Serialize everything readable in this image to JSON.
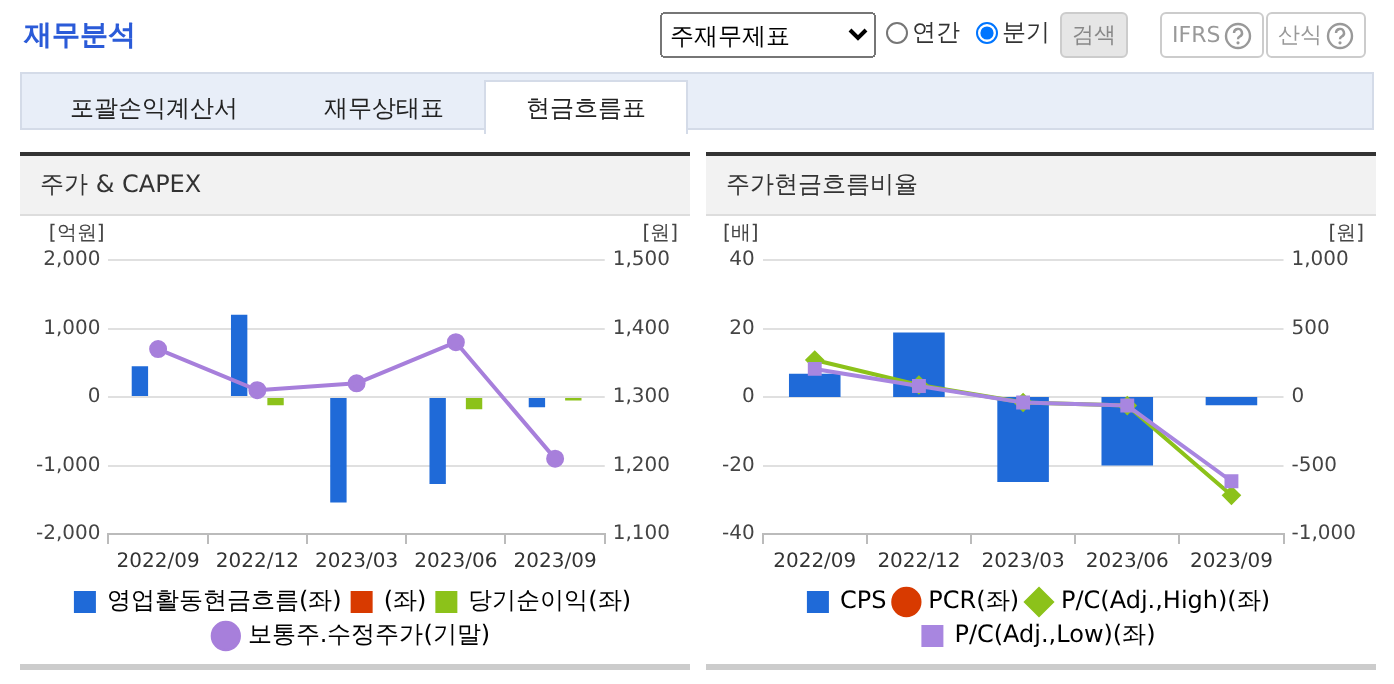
{
  "chart_data": [
    {
      "type": "other",
      "title": "재무분석",
      "annotations": [
        "주재무제표",
        "연간",
        "분기",
        "검색",
        "IFRS",
        "산식",
        "포괄손익계산서",
        "재무상태표",
        "현금흐름표"
      ]
    },
    {
      "type": "bar",
      "title": "주가 & CAPEX",
      "ylabel": "[억원]",
      "y2label": "[원]",
      "categories": [
        "2022/09",
        "2022/12",
        "2023/03",
        "2023/06",
        "2023/09"
      ],
      "series": [
        {
          "name": "영업활동현금흐름(좌)",
          "color": "#1f6ad8",
          "values": [
            450,
            1200,
            -1540,
            -1270,
            -150
          ]
        },
        {
          "name": "(좌)",
          "color": "#d83a00",
          "values": [
            null,
            null,
            null,
            null,
            null
          ]
        },
        {
          "name": "당기순이익(좌)",
          "color": "#8cc21a",
          "values": [
            null,
            -120,
            null,
            -180,
            -50
          ]
        },
        {
          "name": "보통주.수정주가(기말)",
          "type": "line",
          "axis": "y2",
          "marker": "circle",
          "color": "#a77fdb",
          "values": [
            1370,
            1310,
            1320,
            1380,
            1210
          ]
        }
      ],
      "ylim": [
        -2000,
        2000
      ],
      "yticks": [
        {
          "value": -2000,
          "label": "-2,000"
        },
        {
          "value": -1000,
          "label": "-1,000"
        },
        0,
        {
          "value": 1000,
          "label": "1,000"
        },
        {
          "value": 2000,
          "label": "2,000"
        }
      ],
      "y2lim": [
        1100,
        1500
      ],
      "y2ticks": [
        {
          "value": 1100,
          "label": "1,100"
        },
        {
          "value": 1200,
          "label": "1,200"
        },
        {
          "value": 1300,
          "label": "1,300"
        },
        {
          "value": 1400,
          "label": "1,400"
        },
        {
          "value": 1500,
          "label": "1,500"
        }
      ],
      "grid": "y",
      "legend": "bottom"
    },
    {
      "type": "bar",
      "title": "주가현금흐름비율",
      "ylabel": "[배]",
      "y2label": "[원]",
      "categories": [
        "2022/09",
        "2022/12",
        "2023/03",
        "2023/06",
        "2023/09"
      ],
      "series": [
        {
          "name": "CPS",
          "color": "#1f6ad8",
          "axis": "y2",
          "values": [
            170,
            470,
            -620,
            -500,
            -60
          ]
        },
        {
          "name": "PCR(좌)",
          "type": "line",
          "marker": "circle",
          "color": "#d83a00",
          "values": [
            null,
            null,
            null,
            null,
            null
          ]
        },
        {
          "name": "P/C(Adj.,High)(좌)",
          "type": "line",
          "marker": "diamond",
          "color": "#8cc21a",
          "values": [
            10.8,
            3.5,
            -1.6,
            -2.5,
            -28.7
          ]
        },
        {
          "name": "P/C(Adj.,Low)(좌)",
          "type": "line",
          "marker": "square",
          "color": "#a886e0",
          "values": [
            8.2,
            3.2,
            -1.6,
            -2.5,
            -24.6
          ]
        }
      ],
      "ylim": [
        -40,
        40
      ],
      "yticks": [
        -40,
        -20,
        0,
        20,
        40
      ],
      "y2lim": [
        -1000,
        1000
      ],
      "y2ticks": [
        {
          "value": -1000,
          "label": "-1,000"
        },
        -500,
        0,
        500,
        {
          "value": 1000,
          "label": "1,000"
        }
      ],
      "grid": "y",
      "legend": "bottom"
    }
  ]
}
